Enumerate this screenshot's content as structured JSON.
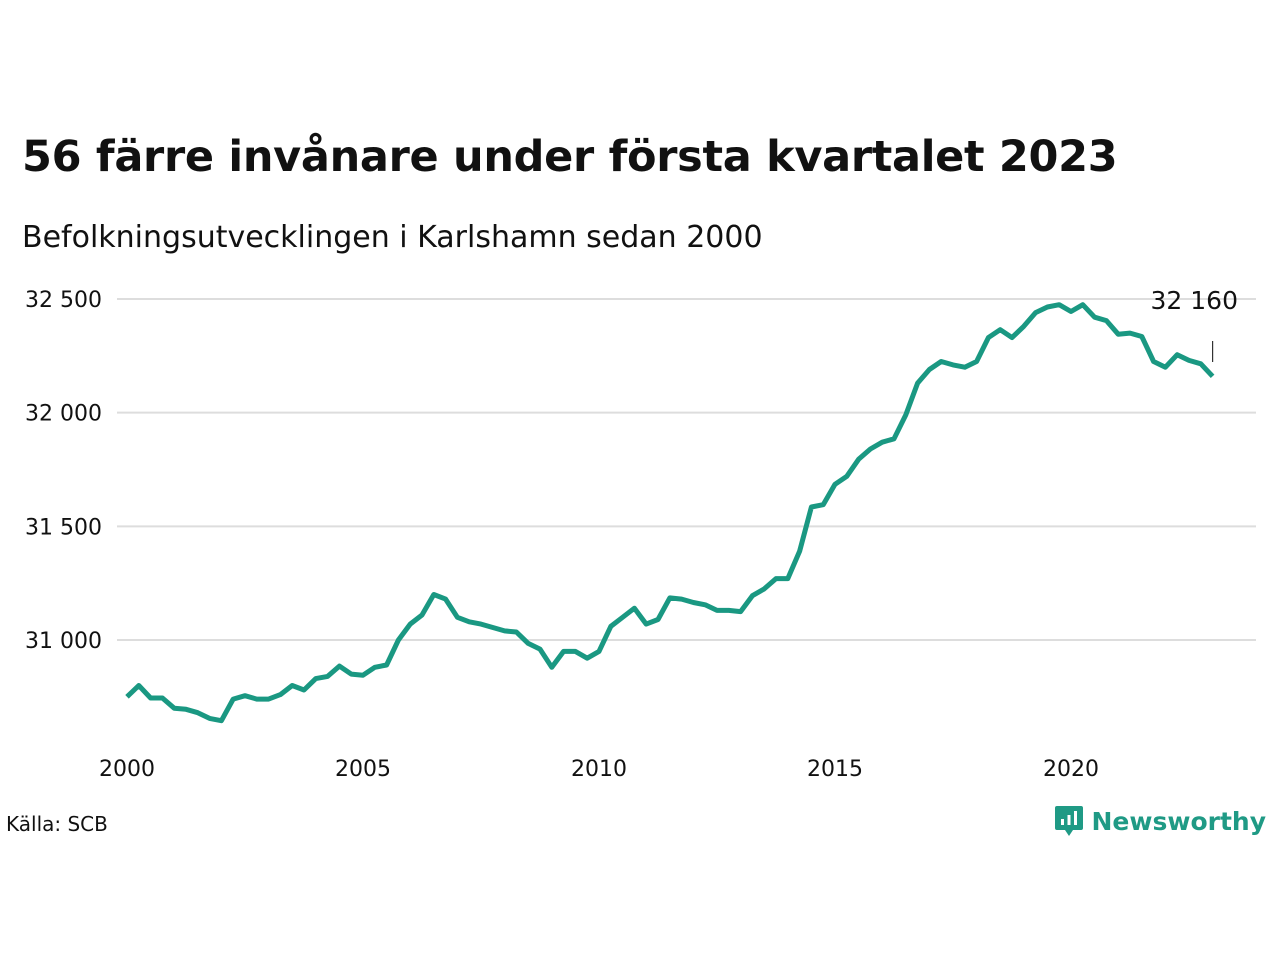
{
  "title": "56 färre invånare under första kvartalet 2023",
  "subtitle": "Befolkningsutvecklingen i Karlshamn sedan 2000",
  "source": "Källa: SCB",
  "brand": {
    "name": "Newsworthy",
    "icon": "newsworthy-logo-icon",
    "color": "#1f9a85"
  },
  "colors": {
    "line": "#1a9882",
    "grid": "#dddddd"
  },
  "chart_data": {
    "type": "line",
    "title": "56 färre invånare under första kvartalet 2023",
    "subtitle": "Befolkningsutvecklingen i Karlshamn sedan 2000",
    "xlabel": "",
    "ylabel": "",
    "xlim": [
      2000,
      2023.25
    ],
    "ylim": [
      30600,
      32500
    ],
    "x_ticks": [
      {
        "value": 2000,
        "label": "2000"
      },
      {
        "value": 2005,
        "label": "2005"
      },
      {
        "value": 2010,
        "label": "2010"
      },
      {
        "value": 2015,
        "label": "2015"
      },
      {
        "value": 2020,
        "label": "2020"
      }
    ],
    "y_ticks": [
      {
        "value": 31000,
        "label": "31 000"
      },
      {
        "value": 31500,
        "label": "31 500"
      },
      {
        "value": 32000,
        "label": "32 000"
      },
      {
        "value": 32500,
        "label": "32 500"
      }
    ],
    "grid": "horizontal",
    "end_label": {
      "x": 2023.0,
      "value": 32160,
      "text": "32 160"
    },
    "series": [
      {
        "x": [
          2000.0,
          2000.25,
          2000.5,
          2000.75,
          2001.0,
          2001.25,
          2001.5,
          2001.75,
          2002.0,
          2002.25,
          2002.5,
          2002.75,
          2003.0,
          2003.25,
          2003.5,
          2003.75,
          2004.0,
          2004.25,
          2004.5,
          2004.75,
          2005.0,
          2005.25,
          2005.5,
          2005.75,
          2006.0,
          2006.25,
          2006.5,
          2006.75,
          2007.0,
          2007.25,
          2007.5,
          2007.75,
          2008.0,
          2008.25,
          2008.5,
          2008.75,
          2009.0,
          2009.25,
          2009.5,
          2009.75,
          2010.0,
          2010.25,
          2010.5,
          2010.75,
          2011.0,
          2011.25,
          2011.5,
          2011.75,
          2012.0,
          2012.25,
          2012.5,
          2012.75,
          2013.0,
          2013.25,
          2013.5,
          2013.75,
          2014.0,
          2014.25,
          2014.5,
          2014.75,
          2015.0,
          2015.25,
          2015.5,
          2015.75,
          2016.0,
          2016.25,
          2016.5,
          2016.75,
          2017.0,
          2017.25,
          2017.5,
          2017.75,
          2018.0,
          2018.25,
          2018.5,
          2018.75,
          2019.0,
          2019.25,
          2019.5,
          2019.75,
          2020.0,
          2020.25,
          2020.5,
          2020.75,
          2021.0,
          2021.25,
          2021.5,
          2021.75,
          2022.0,
          2022.25,
          2022.5,
          2022.75,
          2023.0
        ],
        "values": [
          30750,
          30800,
          30745,
          30745,
          30700,
          30695,
          30680,
          30655,
          30645,
          30740,
          30755,
          30740,
          30740,
          30760,
          30800,
          30780,
          30830,
          30840,
          30885,
          30850,
          30845,
          30880,
          30890,
          31000,
          31070,
          31110,
          31200,
          31180,
          31100,
          31080,
          31070,
          31055,
          31040,
          31035,
          30985,
          30960,
          30880,
          30950,
          30950,
          30920,
          30950,
          31060,
          31100,
          31140,
          31070,
          31090,
          31185,
          31180,
          31165,
          31155,
          31130,
          31130,
          31125,
          31195,
          31225,
          31270,
          31270,
          31390,
          31585,
          31595,
          31685,
          31720,
          31795,
          31840,
          31870,
          31885,
          31990,
          32130,
          32190,
          32225,
          32210,
          32200,
          32225,
          32330,
          32365,
          32330,
          32380,
          32440,
          32465,
          32475,
          32445,
          32475,
          32420,
          32405,
          32345,
          32350,
          32335,
          32225,
          32200,
          32255,
          32230,
          32215,
          32160
        ]
      }
    ]
  }
}
